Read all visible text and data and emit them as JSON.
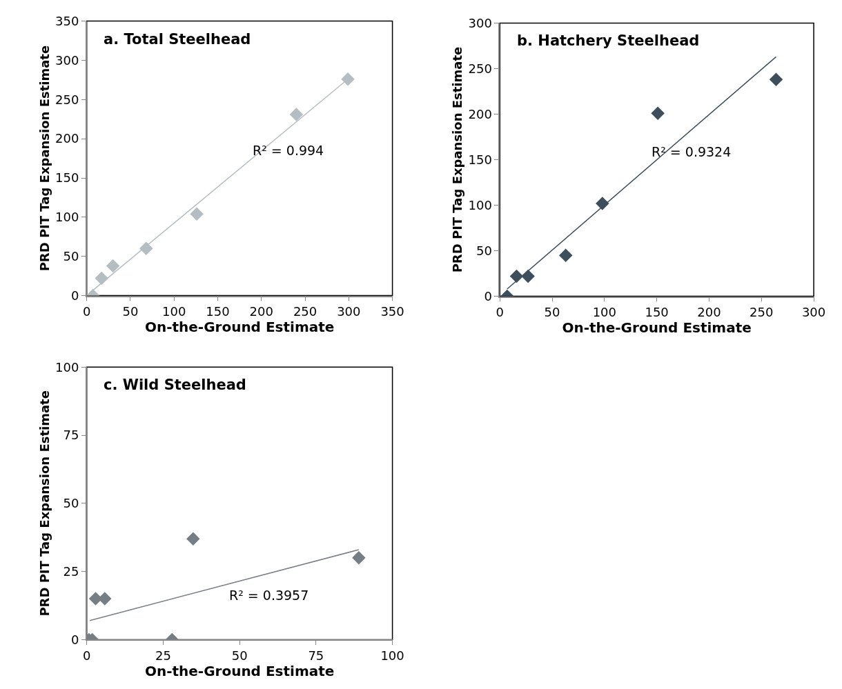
{
  "chart_data": [
    {
      "type": "scatter",
      "title": "a. Total Steelhead",
      "xlabel": "On-the-Ground Estimate",
      "ylabel": "PRD PIT Tag Expansion Estimate",
      "xlim": [
        0,
        350
      ],
      "ylim": [
        0,
        350
      ],
      "xticks": [
        0,
        50,
        100,
        150,
        200,
        250,
        300,
        350
      ],
      "yticks": [
        0,
        50,
        100,
        150,
        200,
        250,
        300,
        350
      ],
      "marker": "diamond",
      "series": [
        {
          "color": "#b4bec2",
          "x": [
            7,
            17,
            30,
            68,
            126,
            240,
            299
          ],
          "values": [
            0,
            22,
            38,
            60,
            104,
            231,
            276
          ]
        },
        {
          "type": "line",
          "marker": "none",
          "color": "#b4bec2",
          "x": [
            3,
            299
          ],
          "values": [
            3,
            276
          ]
        }
      ],
      "annotations": [
        "R² = 0.994"
      ]
    },
    {
      "type": "scatter",
      "title": "b. Hatchery Steelhead",
      "xlabel": "On-the-Ground Estimate",
      "ylabel": "PRD PIT Tag Expansion Estimate",
      "xlim": [
        0,
        300
      ],
      "ylim": [
        0,
        300
      ],
      "xticks": [
        0,
        50,
        100,
        150,
        200,
        250,
        300
      ],
      "yticks": [
        0,
        50,
        100,
        150,
        200,
        250,
        300
      ],
      "marker": "diamond",
      "series": [
        {
          "color": "#3d4f5c",
          "x": [
            7,
            16,
            27,
            63,
            98,
            151,
            264
          ],
          "values": [
            0,
            22,
            22,
            45,
            102,
            201,
            238
          ]
        },
        {
          "type": "line",
          "marker": "none",
          "color": "#3d4f5c",
          "x": [
            7,
            264
          ],
          "values": [
            8,
            263
          ]
        }
      ],
      "annotations": [
        "R² = 0.9324"
      ]
    },
    {
      "type": "scatter",
      "title": "c. Wild Steelhead",
      "xlabel": "On-the-Ground Estimate",
      "ylabel": "PRD PIT Tag Expansion Estimate",
      "xlim": [
        0,
        100
      ],
      "ylim": [
        0,
        100
      ],
      "xticks": [
        0,
        25,
        50,
        75,
        100
      ],
      "yticks": [
        0,
        25,
        50,
        75,
        100
      ],
      "marker": "diamond",
      "series": [
        {
          "color": "#767e85",
          "x": [
            0.7,
            1.8,
            2.9,
            5.9,
            27.9,
            34.8,
            89.0
          ],
          "values": [
            0,
            0,
            15,
            15,
            0,
            37,
            30
          ]
        },
        {
          "type": "line",
          "marker": "none",
          "color": "#767e85",
          "x": [
            1.0,
            89.0
          ],
          "values": [
            7,
            33
          ]
        }
      ],
      "annotations": [
        "R² = 0.3957"
      ]
    }
  ]
}
